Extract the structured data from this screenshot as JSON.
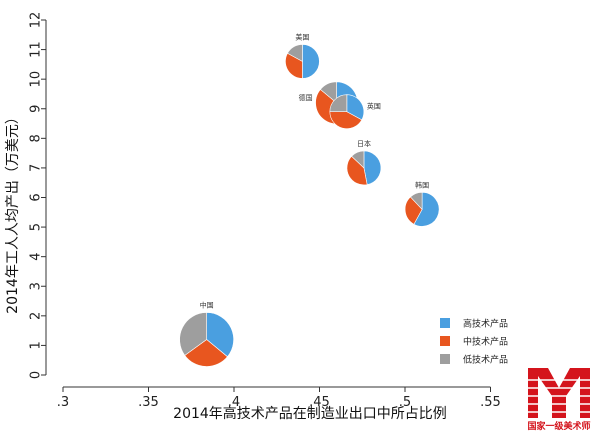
{
  "colors": {
    "high": "#4a9fe0",
    "mid": "#e8561f",
    "low": "#9e9e9e",
    "logo": "#d4141c"
  },
  "watermark": {
    "label": "国家一级美术师"
  },
  "chart_data": {
    "type": "scatter",
    "xlabel": "2014年高技术产品在制造业出口中所占比例",
    "ylabel": "2014年工人人均产出（万美元）",
    "xlim": [
      0.3,
      0.6
    ],
    "ylim": [
      0,
      12
    ],
    "xticks": [
      0.3,
      0.35,
      0.4,
      0.45,
      0.5,
      0.55
    ],
    "xtick_labels": [
      ".3",
      ".35",
      ".4",
      ".45",
      ".5",
      ".55"
    ],
    "yticks": [
      0,
      1,
      2,
      3,
      4,
      5,
      6,
      7,
      8,
      9,
      10,
      11,
      12
    ],
    "ytick_labels": [
      "0",
      "1",
      "2",
      "3",
      "4",
      "5",
      "6",
      "7",
      "8",
      "9",
      "10",
      "11",
      "12"
    ],
    "legend_position": "bottom-right",
    "series": [
      {
        "name": "高技术产品",
        "color_key": "high"
      },
      {
        "name": "中技术产品",
        "color_key": "mid"
      },
      {
        "name": "低技术产品",
        "color_key": "low"
      }
    ],
    "points": [
      {
        "label": "美国",
        "x": 0.44,
        "y": 10.6,
        "shares": [
          0.5,
          0.33,
          0.17
        ]
      },
      {
        "label": "德国",
        "x": 0.46,
        "y": 9.2,
        "shares": [
          0.33,
          0.53,
          0.14
        ]
      },
      {
        "label": "英国",
        "x": 0.466,
        "y": 8.9,
        "shares": [
          0.33,
          0.42,
          0.25
        ]
      },
      {
        "label": "日本",
        "x": 0.476,
        "y": 7.0,
        "shares": [
          0.47,
          0.4,
          0.13
        ]
      },
      {
        "label": "韩国",
        "x": 0.51,
        "y": 5.6,
        "shares": [
          0.58,
          0.3,
          0.12
        ]
      },
      {
        "label": "中国",
        "x": 0.384,
        "y": 1.2,
        "shares": [
          0.36,
          0.29,
          0.35
        ]
      }
    ]
  }
}
